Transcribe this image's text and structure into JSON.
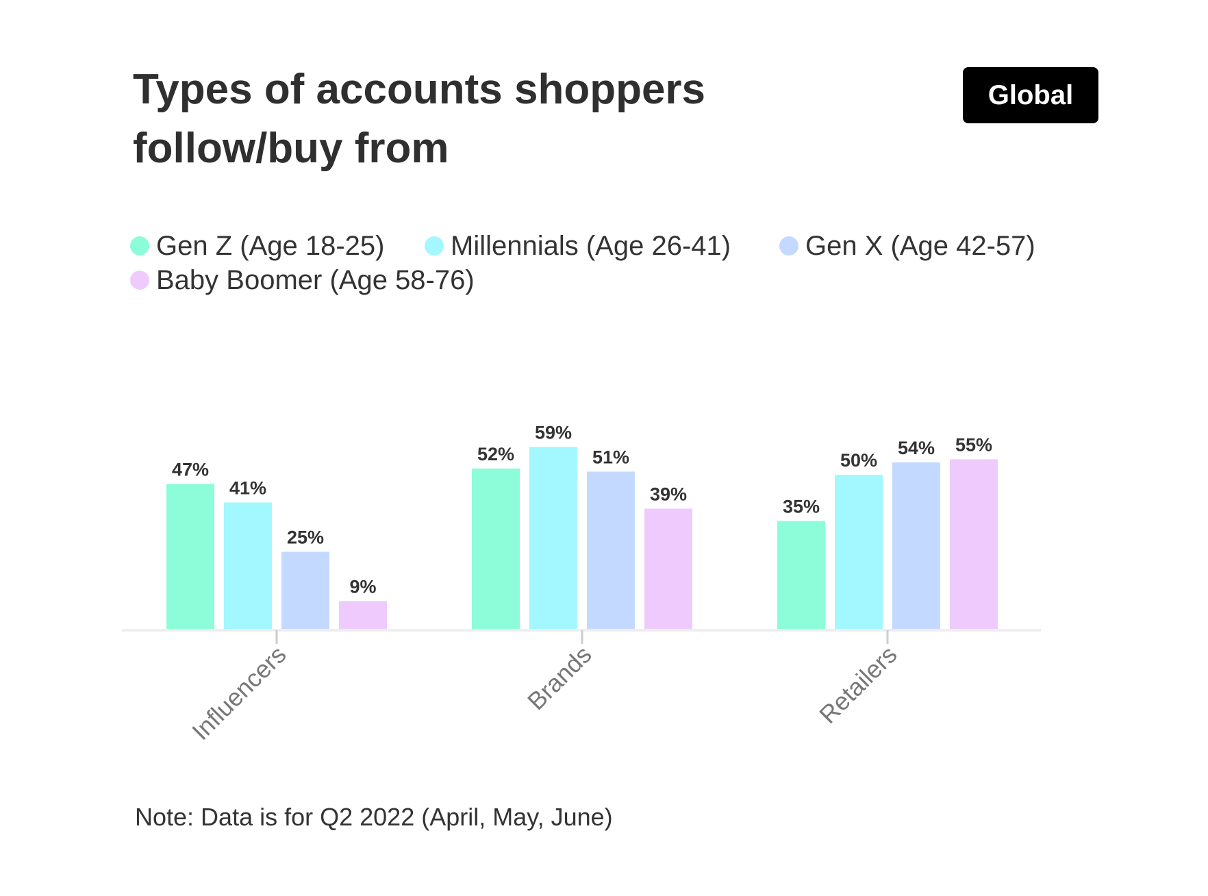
{
  "header": {
    "title": "Types of accounts shoppers follow/buy from",
    "region_badge": "Global"
  },
  "chart_data": {
    "type": "bar",
    "title": "Types of accounts shoppers follow/buy from",
    "categories": [
      "Influencers",
      "Brands",
      "Retailers"
    ],
    "series": [
      {
        "name": "Gen Z (Age 18-25)",
        "color": "#8cfcd9",
        "values": [
          47,
          52,
          35
        ]
      },
      {
        "name": "Millennials (Age 26-41)",
        "color": "#a3f7ff",
        "values": [
          41,
          59,
          50
        ]
      },
      {
        "name": "Gen X (Age 42-57)",
        "color": "#c4d9ff",
        "values": [
          25,
          51,
          54
        ]
      },
      {
        "name": "Baby Boomer (Age 58-76)",
        "color": "#eecbfc",
        "values": [
          9,
          39,
          55
        ]
      }
    ],
    "value_suffix": "%",
    "xlabel": "",
    "ylabel": "",
    "ylim": [
      0,
      100
    ],
    "grid": false,
    "legend": "top"
  },
  "footer": {
    "note": "Note: Data is for Q2 2022 (April, May, June)"
  }
}
